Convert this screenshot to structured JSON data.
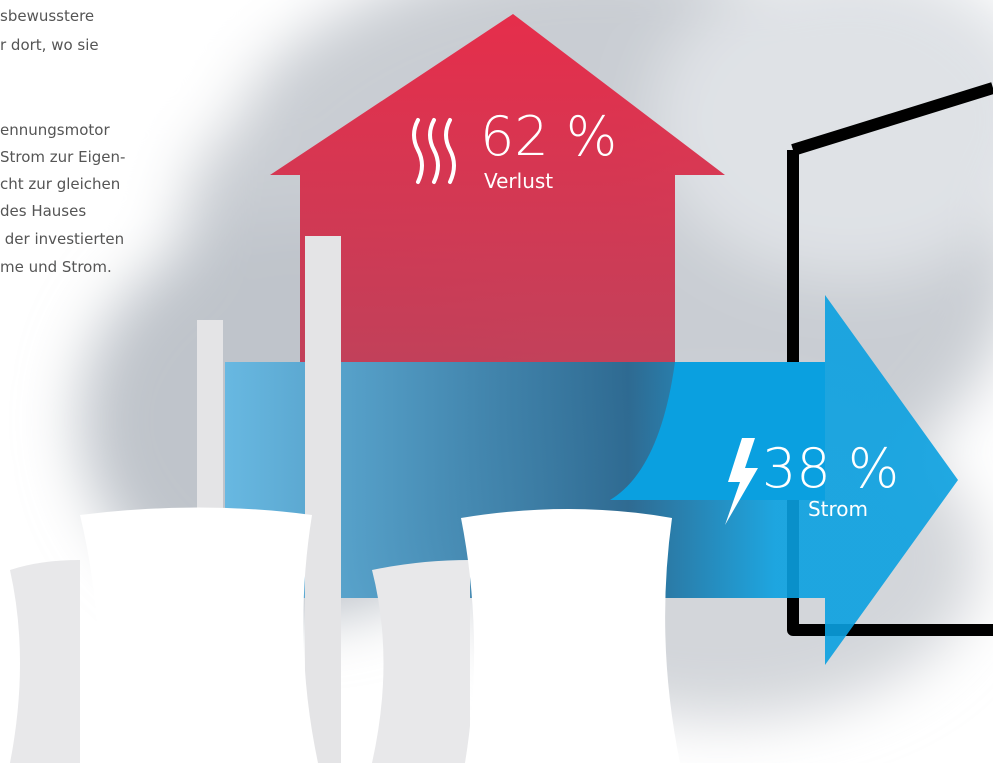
{
  "intro_text": {
    "lines": [
      "sbewusstere",
      "r dort, wo sie",
      "ennungsmotor",
      "Strom zur Eigen-",
      "cht zur gleichen",
      "des Hauses",
      " der investierten",
      "me und Strom."
    ]
  },
  "loss": {
    "value": "62 %",
    "label": "Verlust"
  },
  "power": {
    "value": "38 %",
    "label": "Strom"
  }
}
